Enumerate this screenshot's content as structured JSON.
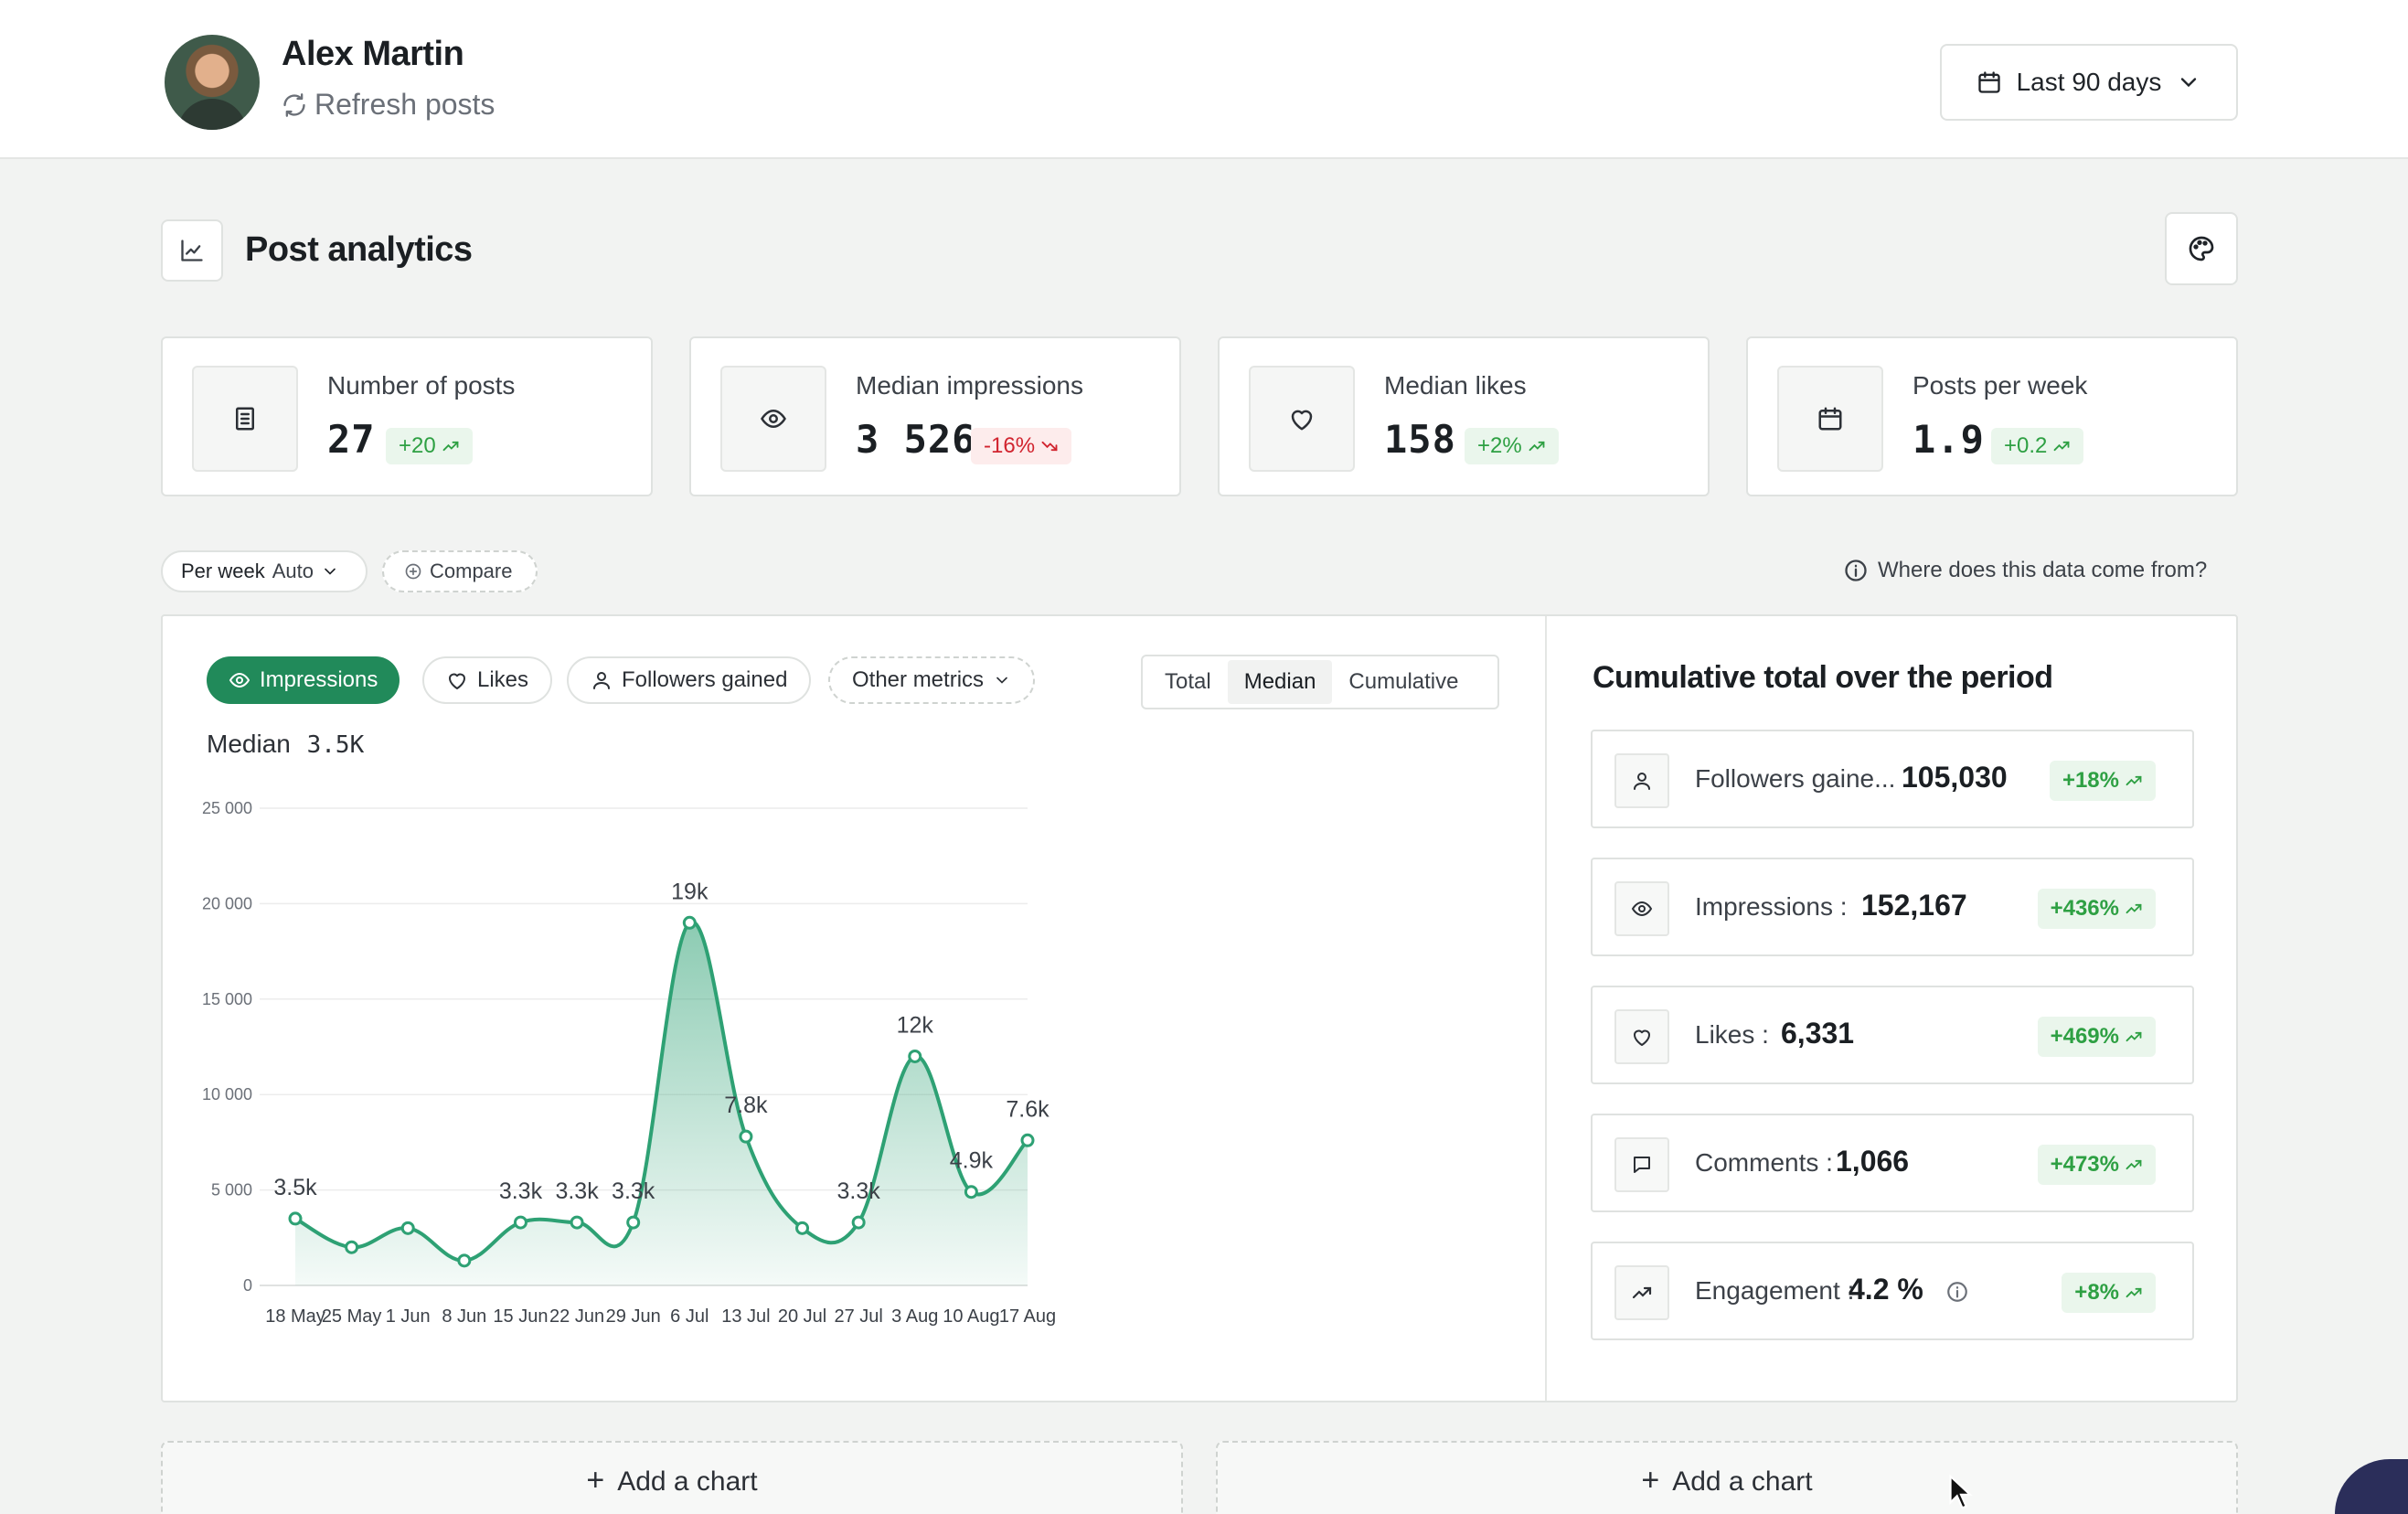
{
  "header": {
    "user_name": "Alex Martin",
    "refresh_label": "Refresh posts",
    "date_range_label": "Last 90 days"
  },
  "section": {
    "title": "Post analytics"
  },
  "stats": [
    {
      "label": "Number of posts",
      "value": "27",
      "delta": "+20",
      "trend": "up",
      "icon": "document-icon"
    },
    {
      "label": "Median impressions",
      "value": "3 526",
      "delta": "-16%",
      "trend": "down",
      "icon": "eye-icon"
    },
    {
      "label": "Median likes",
      "value": "158",
      "delta": "+2%",
      "trend": "up",
      "icon": "heart-icon"
    },
    {
      "label": "Posts per week",
      "value": "1.9",
      "delta": "+0.2",
      "trend": "up",
      "icon": "calendar-icon"
    }
  ],
  "controls": {
    "interval_label": "Per week",
    "interval_mode": "Auto",
    "compare_label": "Compare",
    "data_source_label": "Where does this data come from?"
  },
  "metric_tabs": {
    "impressions": "Impressions",
    "likes": "Likes",
    "followers": "Followers gained",
    "other": "Other metrics"
  },
  "aggregation": {
    "options": [
      "Total",
      "Median",
      "Cumulative"
    ],
    "selected": "Median"
  },
  "median_summary": {
    "label": "Median",
    "value": "3.5K"
  },
  "chart_data": {
    "type": "area",
    "x": [
      "18 May",
      "25 May",
      "1 Jun",
      "8 Jun",
      "15 Jun",
      "22 Jun",
      "29 Jun",
      "6 Jul",
      "13 Jul",
      "20 Jul",
      "27 Jul",
      "3 Aug",
      "10 Aug",
      "17 Aug"
    ],
    "series": [
      {
        "values": [
          3500,
          2000,
          3000,
          1300,
          3300,
          3300,
          3300,
          19000,
          7800,
          3000,
          3300,
          12000,
          4900,
          7600
        ],
        "point_labels": [
          "3.5k",
          "",
          "",
          "",
          "3.3k",
          "3.3k",
          "3.3k",
          "19k",
          "7.8k",
          "",
          "3.3k",
          "12k",
          "4.9k",
          "7.6k"
        ]
      }
    ],
    "yticks": [
      "0",
      "5 000",
      "10 000",
      "15 000",
      "20 000",
      "25 000"
    ],
    "ylim": [
      0,
      25000
    ],
    "grid": true,
    "color": "#2ea174"
  },
  "cumulative": {
    "title": "Cumulative total over the period",
    "rows": [
      {
        "label": "Followers gaine...",
        "value": "105,030",
        "delta": "+18%",
        "icon": "user-icon"
      },
      {
        "label": "Impressions :",
        "value": "152,167",
        "delta": "+436%",
        "icon": "eye-icon"
      },
      {
        "label": "Likes :",
        "value": "6,331",
        "delta": "+469%",
        "icon": "heart-icon"
      },
      {
        "label": "Comments :",
        "value": "1,066",
        "delta": "+473%",
        "icon": "comment-icon"
      },
      {
        "label": "Engagement :",
        "value": "4.2 %",
        "delta": "+8%",
        "icon": "trend-icon"
      }
    ]
  },
  "add_chart_label": "Add a chart"
}
